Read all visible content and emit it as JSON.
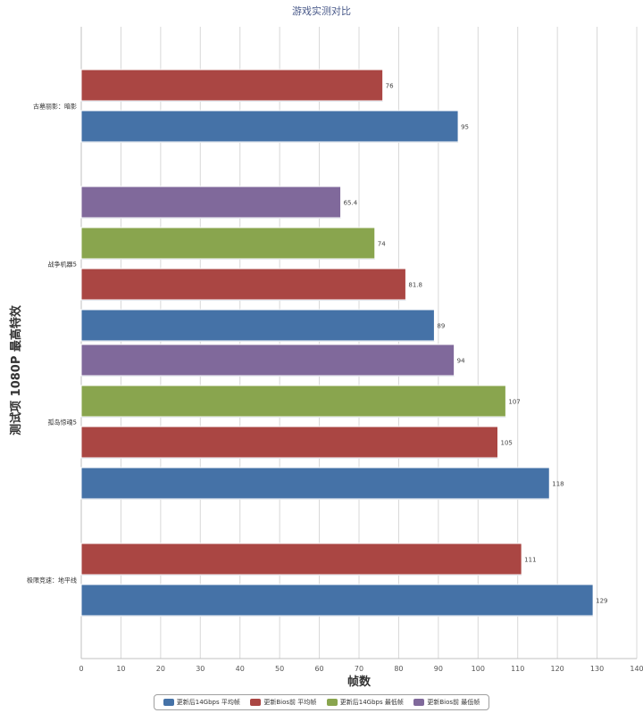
{
  "chart_data": {
    "type": "bar",
    "orientation": "horizontal",
    "title": "游戏实测对比",
    "xlabel": "帧数",
    "ylabel": "测试项 1080P 最高特效",
    "xlim": [
      0,
      140
    ],
    "xticks": [
      0,
      10,
      20,
      30,
      40,
      50,
      60,
      70,
      80,
      90,
      100,
      110,
      120,
      130,
      140
    ],
    "grid": true,
    "legend_position": "bottom",
    "categories": [
      "古墓丽影：暗影",
      "战争机器5",
      "孤岛惊魂5",
      "极限竞速：地平线"
    ],
    "series": [
      {
        "name": "更新后14Gbps 平均帧",
        "color": "#4572a7",
        "values": [
          95,
          89,
          118,
          129
        ]
      },
      {
        "name": "更新Bios前 平均帧",
        "color": "#aa4643",
        "values": [
          76,
          81.8,
          105,
          111
        ]
      },
      {
        "name": "更新后14Gbps 最低帧",
        "color": "#89a54e",
        "values": [
          null,
          74,
          107,
          null
        ]
      },
      {
        "name": "更新Bios前 最低帧",
        "color": "#80699b",
        "values": [
          null,
          65.4,
          94,
          null
        ]
      }
    ],
    "value_labels": {
      "古墓丽影：暗影": [
        "76",
        "95"
      ],
      "战争机器5": [
        "65.4",
        "74",
        "81.8",
        "89"
      ],
      "孤岛惊魂5": [
        "94",
        "107",
        "105",
        "118"
      ],
      "极限竞速：地平线": [
        "111",
        "129"
      ]
    }
  }
}
